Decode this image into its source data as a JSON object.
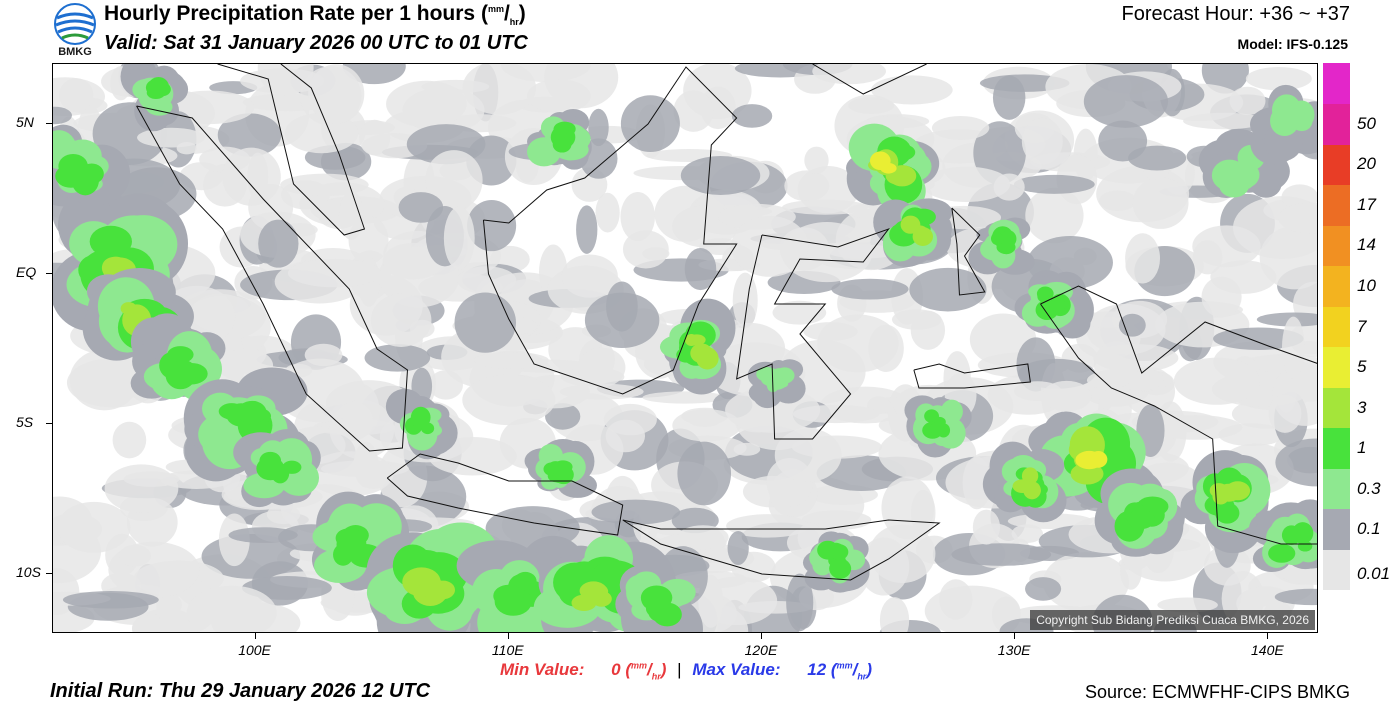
{
  "header": {
    "title": "Hourly Precipitation Rate per 1 hours",
    "title_unit_num": "mm",
    "title_unit_den": "hr",
    "valid": "Valid: Sat 31 January 2026 00 UTC to 01 UTC",
    "forecast_hour": "Forecast Hour: +36 ~ +37",
    "model": "Model: IFS-0.125",
    "logo_text": "BMKG"
  },
  "map": {
    "copyright": "Copyright Sub Bidang Prediksi Cuaca BMKG, 2026",
    "lat_labels": [
      {
        "text": "5N",
        "lat": 5
      },
      {
        "text": "EQ",
        "lat": 0
      },
      {
        "text": "5S",
        "lat": -5
      },
      {
        "text": "10S",
        "lat": -10
      }
    ],
    "lon_labels": [
      {
        "text": "100E",
        "lon": 100
      },
      {
        "text": "110E",
        "lon": 110
      },
      {
        "text": "120E",
        "lon": 120
      },
      {
        "text": "130E",
        "lon": 130
      },
      {
        "text": "140E",
        "lon": 140
      }
    ],
    "extent": {
      "lon_min": 92,
      "lon_max": 142,
      "lat_min": -12,
      "lat_max": 7
    }
  },
  "colorbar": {
    "levels": [
      {
        "label": "0.01",
        "color": "#e6e6e6"
      },
      {
        "label": "0.1",
        "color": "#a6a9b2"
      },
      {
        "label": "0.3",
        "color": "#8ee890"
      },
      {
        "label": "1",
        "color": "#48e23c"
      },
      {
        "label": "3",
        "color": "#a4e53a"
      },
      {
        "label": "5",
        "color": "#e9ee33"
      },
      {
        "label": "7",
        "color": "#f2d21f"
      },
      {
        "label": "10",
        "color": "#f3b31f"
      },
      {
        "label": "14",
        "color": "#f19022"
      },
      {
        "label": "17",
        "color": "#ec6d24"
      },
      {
        "label": "20",
        "color": "#e83d26"
      },
      {
        "label": "50",
        "color": "#e2229a"
      }
    ],
    "top_color": "#e326c9"
  },
  "footer": {
    "min_label": "Min Value:",
    "min_value": "0",
    "max_label": "Max Value:",
    "max_value": "12",
    "unit_num": "mm",
    "unit_den": "hr",
    "separator": "|",
    "initial_run": "Initial Run: Thu 29 January 2026 12 UTC",
    "source": "Source: ECMWFHF-CIPS BMKG"
  }
}
